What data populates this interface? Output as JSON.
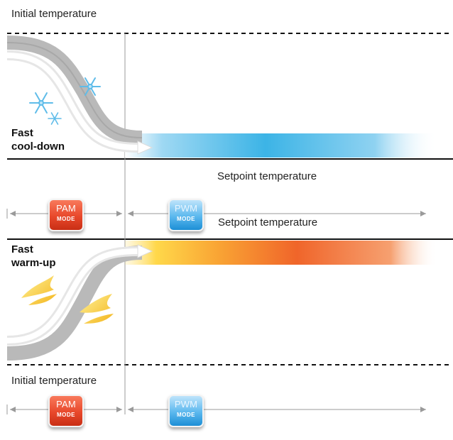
{
  "labels": {
    "initial_top": "Initial temperature",
    "fast_cooldown_l1": "Fast",
    "fast_cooldown_l2": "cool-down",
    "setpoint_upper": "Setpoint temperature",
    "setpoint_lower": "Setpoint temperature",
    "fast_warmup_l1": "Fast",
    "fast_warmup_l2": "warm-up",
    "initial_bottom": "Initial temperature"
  },
  "badges": {
    "pam": {
      "top": "PAM",
      "bottom": "MODE"
    },
    "pwm": {
      "top": "PWM",
      "bottom": "MODE"
    }
  },
  "colors": {
    "pam": "#e8482b",
    "pwm": "#3aa6e6",
    "cool_band": "#3cb4e6",
    "warm_band": "#f0652a",
    "warm_band_start": "#ffd84a"
  }
}
